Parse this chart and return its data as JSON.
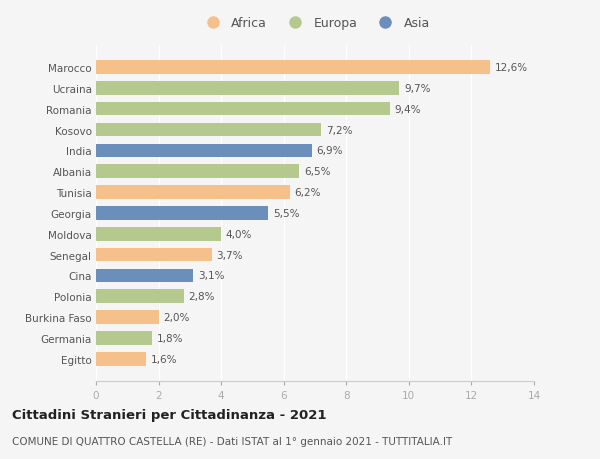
{
  "countries": [
    "Marocco",
    "Ucraina",
    "Romania",
    "Kosovo",
    "India",
    "Albania",
    "Tunisia",
    "Georgia",
    "Moldova",
    "Senegal",
    "Cina",
    "Polonia",
    "Burkina Faso",
    "Germania",
    "Egitto"
  ],
  "values": [
    12.6,
    9.7,
    9.4,
    7.2,
    6.9,
    6.5,
    6.2,
    5.5,
    4.0,
    3.7,
    3.1,
    2.8,
    2.0,
    1.8,
    1.6
  ],
  "continents": [
    "Africa",
    "Europa",
    "Europa",
    "Europa",
    "Asia",
    "Europa",
    "Africa",
    "Asia",
    "Europa",
    "Africa",
    "Asia",
    "Europa",
    "Africa",
    "Europa",
    "Africa"
  ],
  "colors": {
    "Africa": "#F5C08A",
    "Europa": "#B5C98E",
    "Asia": "#6B8FBA"
  },
  "xlim": [
    0,
    14
  ],
  "xticks": [
    0,
    2,
    4,
    6,
    8,
    10,
    12,
    14
  ],
  "title": "Cittadini Stranieri per Cittadinanza - 2021",
  "subtitle": "COMUNE DI QUATTRO CASTELLA (RE) - Dati ISTAT al 1° gennaio 2021 - TUTTITALIA.IT",
  "background_color": "#f5f5f5",
  "bar_height": 0.65,
  "label_fontsize": 7.5,
  "ytick_fontsize": 7.5,
  "xtick_fontsize": 7.5,
  "title_fontsize": 9.5,
  "subtitle_fontsize": 7.5,
  "legend_order": [
    "Africa",
    "Europa",
    "Asia"
  ]
}
